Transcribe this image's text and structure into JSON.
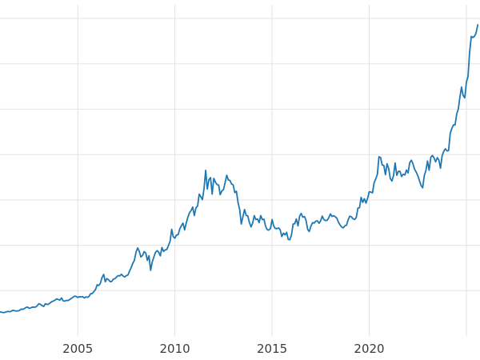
{
  "chart_data": {
    "type": "line",
    "title": "",
    "xlabel": "",
    "ylabel": "",
    "legend": "none",
    "grid": "on",
    "line_color": "#1f77b4",
    "grid_color": "#e3e3e3",
    "tick_label_color": "#3b3b3b",
    "background_color": "#ffffff",
    "xlim": [
      2001.0,
      2025.7
    ],
    "ylim": [
      0,
      3650
    ],
    "x_ticks": [
      {
        "value": 2005,
        "label": "2005"
      },
      {
        "value": 2010,
        "label": "2010"
      },
      {
        "value": 2015,
        "label": "2015"
      },
      {
        "value": 2020,
        "label": "2020"
      }
    ],
    "x_gridlines": [
      2005,
      2010,
      2015,
      2020,
      2025
    ],
    "y_gridlines": [
      500,
      1000,
      1500,
      2000,
      2500,
      3000,
      3500
    ],
    "x_start": 2001.0,
    "samples_per_year": 12,
    "values": [
      265,
      262,
      258,
      260,
      267,
      271,
      267,
      273,
      284,
      279,
      275,
      277,
      281,
      296,
      294,
      302,
      314,
      319,
      304,
      310,
      319,
      317,
      319,
      333,
      357,
      348,
      335,
      326,
      355,
      347,
      351,
      366,
      379,
      385,
      396,
      409,
      402,
      396,
      420,
      388,
      384,
      393,
      390,
      401,
      414,
      426,
      439,
      436,
      424,
      434,
      429,
      435,
      419,
      431,
      426,
      437,
      466,
      469,
      489,
      513,
      565,
      556,
      582,
      644,
      679,
      598,
      633,
      621,
      599,
      601,
      627,
      632,
      651,
      666,
      662,
      681,
      661,
      651,
      666,
      672,
      715,
      754,
      801,
      834,
      923,
      971,
      933,
      871,
      886,
      930,
      914,
      833,
      884,
      724,
      816,
      869,
      920,
      941,
      922,
      883,
      975,
      932,
      949,
      953,
      996,
      1043,
      1175,
      1093,
      1078,
      1113,
      1116,
      1180,
      1215,
      1244,
      1169,
      1246,
      1307,
      1358,
      1383,
      1421,
      1327,
      1412,
      1432,
      1563,
      1536,
      1502,
      1628,
      1826,
      1620,
      1722,
      1746,
      1564,
      1737,
      1696,
      1669,
      1664,
      1558,
      1598,
      1614,
      1691,
      1771,
      1719,
      1715,
      1675,
      1664,
      1580,
      1596,
      1469,
      1394,
      1234,
      1313,
      1394,
      1329,
      1324,
      1253,
      1202,
      1244,
      1326,
      1284,
      1289,
      1250,
      1327,
      1283,
      1287,
      1209,
      1173,
      1167,
      1184,
      1284,
      1214,
      1184,
      1184,
      1191,
      1171,
      1096,
      1134,
      1114,
      1142,
      1064,
      1061,
      1116,
      1234,
      1237,
      1290,
      1214,
      1322,
      1351,
      1309,
      1316,
      1273,
      1174,
      1151,
      1212,
      1248,
      1244,
      1266,
      1269,
      1242,
      1269,
      1321,
      1283,
      1271,
      1275,
      1303,
      1345,
      1318,
      1325,
      1315,
      1298,
      1253,
      1224,
      1201,
      1192,
      1215,
      1222,
      1282,
      1321,
      1313,
      1292,
      1283,
      1306,
      1410,
      1414,
      1528,
      1472,
      1513,
      1464,
      1517,
      1589,
      1586,
      1577,
      1687,
      1730,
      1781,
      1976,
      1967,
      1886,
      1879,
      1777,
      1898,
      1848,
      1734,
      1708,
      1768,
      1907,
      1771,
      1814,
      1815,
      1757,
      1783,
      1775,
      1829,
      1797,
      1909,
      1937,
      1897,
      1837,
      1807,
      1766,
      1711,
      1661,
      1634,
      1769,
      1824,
      1928,
      1827,
      1969,
      1990,
      1963,
      1919,
      1965,
      1940,
      1849,
      1984,
      2036,
      2063,
      2040,
      2044,
      2233,
      2286,
      2327,
      2326,
      2446,
      2503,
      2635,
      2744,
      2651,
      2625,
      2798,
      2858,
      3124,
      3302,
      3289,
      3303,
      3339,
      3430
    ]
  }
}
